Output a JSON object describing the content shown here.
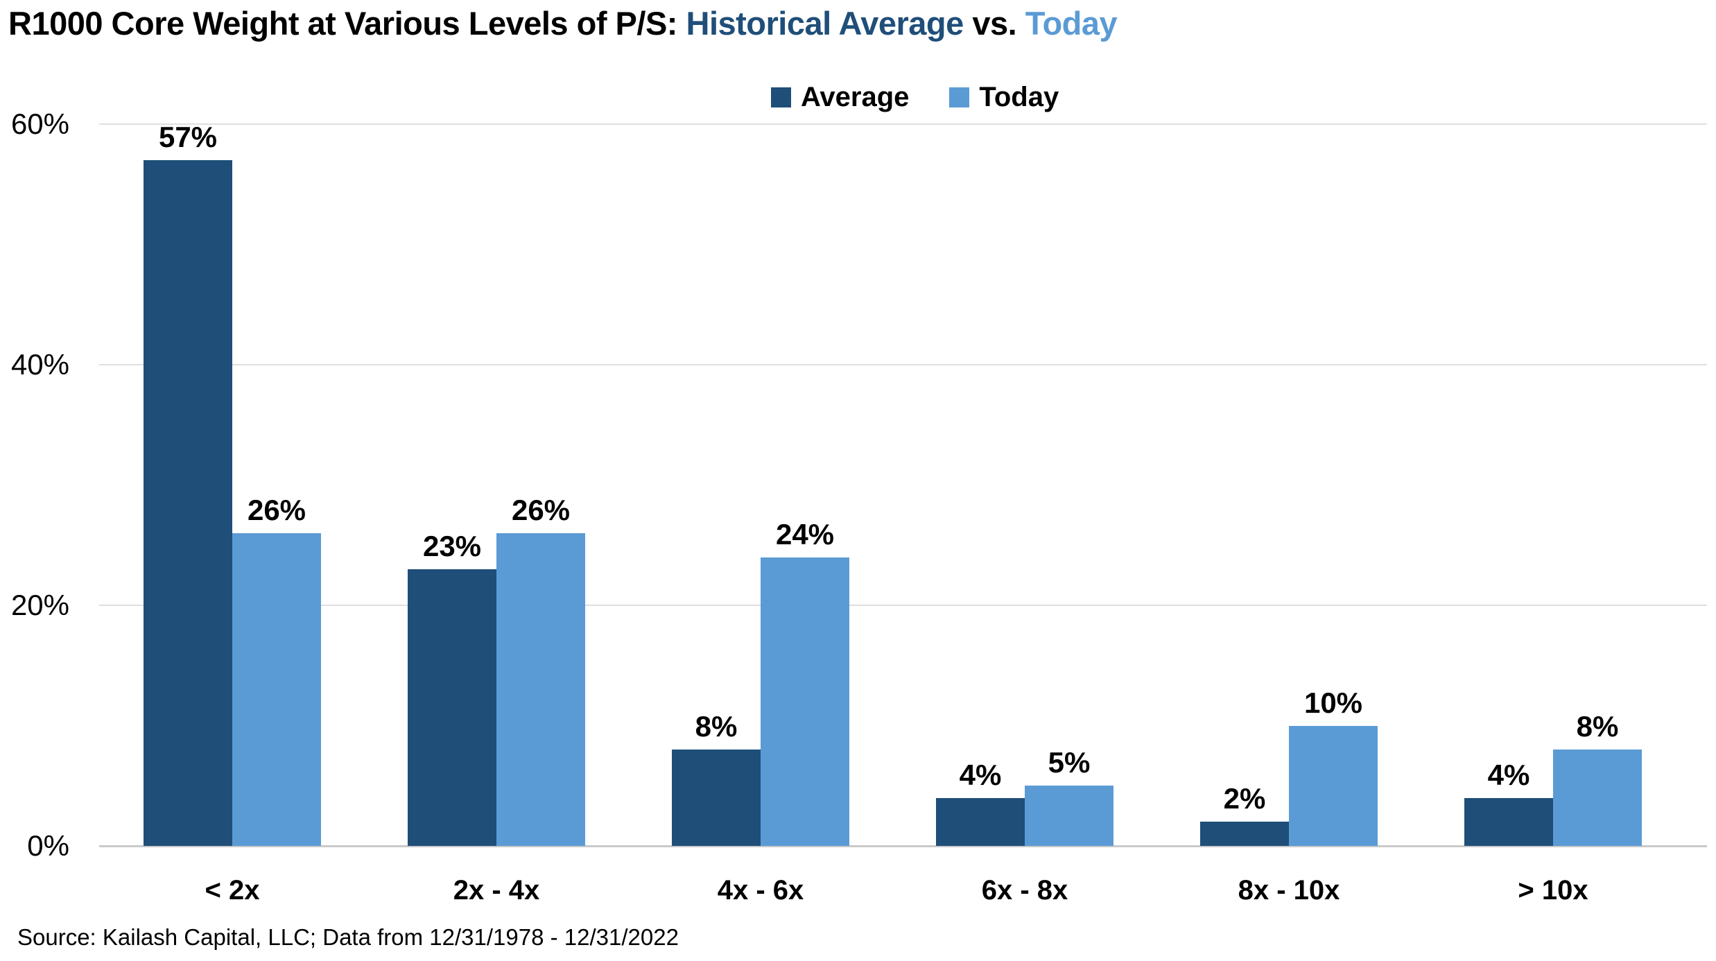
{
  "title": {
    "prefix": "R1000 Core Weight at Various Levels of P/S: ",
    "highlight_average": "Historical Average",
    "separator": " vs. ",
    "highlight_today": "Today"
  },
  "legend": {
    "items": [
      {
        "label": "Average",
        "color": "#1F4E79"
      },
      {
        "label": "Today",
        "color": "#5B9BD5"
      }
    ]
  },
  "chart_data": {
    "type": "bar",
    "title": "R1000 Core Weight at Various Levels of P/S: Historical Average vs. Today",
    "categories": [
      "< 2x",
      "2x - 4x",
      "4x - 6x",
      "6x - 8x",
      "8x - 10x",
      "> 10x"
    ],
    "series": [
      {
        "name": "Average",
        "color": "#1F4E79",
        "values": [
          57,
          23,
          8,
          4,
          2,
          4
        ],
        "value_labels": [
          "57%",
          "23%",
          "8%",
          "4%",
          "2%",
          "4%"
        ]
      },
      {
        "name": "Today",
        "color": "#5B9BD5",
        "values": [
          26,
          26,
          24,
          5,
          10,
          8
        ],
        "value_labels": [
          "26%",
          "26%",
          "24%",
          "5%",
          "10%",
          "8%"
        ]
      }
    ],
    "xlabel": "",
    "ylabel": "",
    "ylim": [
      0,
      60
    ],
    "y_ticks": [
      0,
      20,
      40,
      60
    ],
    "y_tick_labels": [
      "0%",
      "20%",
      "40%",
      "60%"
    ],
    "grid": true,
    "legend_position": "top-center"
  },
  "source": "Source: Kailash Capital, LLC; Data from 12/31/1978 - 12/31/2022",
  "colors": {
    "title_text": "#000000",
    "title_average": "#1F4E79",
    "title_today": "#5B9BD5",
    "gridline": "#DEDEDE",
    "axis_line": "#C9C9C9",
    "label_text": "#000000"
  }
}
